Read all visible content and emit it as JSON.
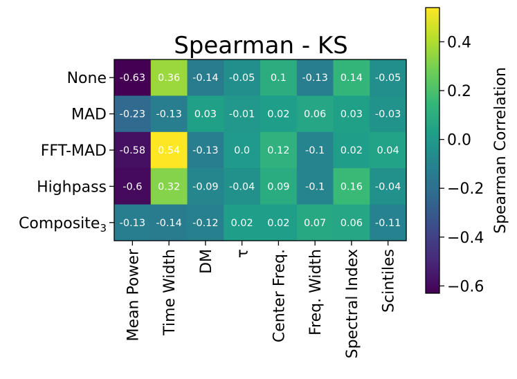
{
  "chart_data": {
    "type": "heatmap",
    "title": "Spearman - KS",
    "rows": [
      "None",
      "MAD",
      "FFT-MAD",
      "Highpass",
      "Composite"
    ],
    "row_subscripts": [
      "",
      "",
      "",
      "",
      "3"
    ],
    "columns": [
      "Mean Power",
      "Time Width",
      "DM",
      "τ",
      "Center Freq.",
      "Freq. Width",
      "Spectral Index",
      "Scintiles"
    ],
    "values": [
      [
        -0.63,
        0.36,
        -0.14,
        -0.05,
        0.1,
        -0.13,
        0.14,
        -0.05
      ],
      [
        -0.23,
        -0.13,
        0.03,
        -0.01,
        0.02,
        0.06,
        0.03,
        -0.03
      ],
      [
        -0.58,
        0.54,
        -0.13,
        0.0,
        0.12,
        -0.1,
        0.02,
        0.04
      ],
      [
        -0.6,
        0.32,
        -0.09,
        -0.04,
        0.09,
        -0.1,
        0.16,
        -0.04
      ],
      [
        -0.13,
        -0.14,
        -0.12,
        0.02,
        0.02,
        0.07,
        0.06,
        -0.11
      ]
    ],
    "value_labels": [
      [
        "-0.63",
        "0.36",
        "-0.14",
        "-0.05",
        "0.1",
        "-0.13",
        "0.14",
        "-0.05"
      ],
      [
        "-0.23",
        "-0.13",
        "0.03",
        "-0.01",
        "0.02",
        "0.06",
        "0.03",
        "-0.03"
      ],
      [
        "-0.58",
        "0.54",
        "-0.13",
        "0.0",
        "0.12",
        "-0.1",
        "0.02",
        "0.04"
      ],
      [
        "-0.6",
        "0.32",
        "-0.09",
        "-0.04",
        "0.09",
        "-0.1",
        "0.16",
        "-0.04"
      ],
      [
        "-0.13",
        "-0.14",
        "-0.12",
        "0.02",
        "0.02",
        "0.07",
        "0.06",
        "-0.11"
      ]
    ],
    "colormap": "viridis",
    "vmin": -0.63,
    "vmax": 0.54,
    "colorbar": {
      "label": "Spearman Correlation",
      "ticks": [
        0.4,
        0.2,
        0.0,
        -0.2,
        -0.4,
        -0.6
      ],
      "tick_labels": [
        "0.4",
        "0.2",
        "0.0",
        "−0.2",
        "−0.4",
        "−0.6"
      ]
    }
  }
}
